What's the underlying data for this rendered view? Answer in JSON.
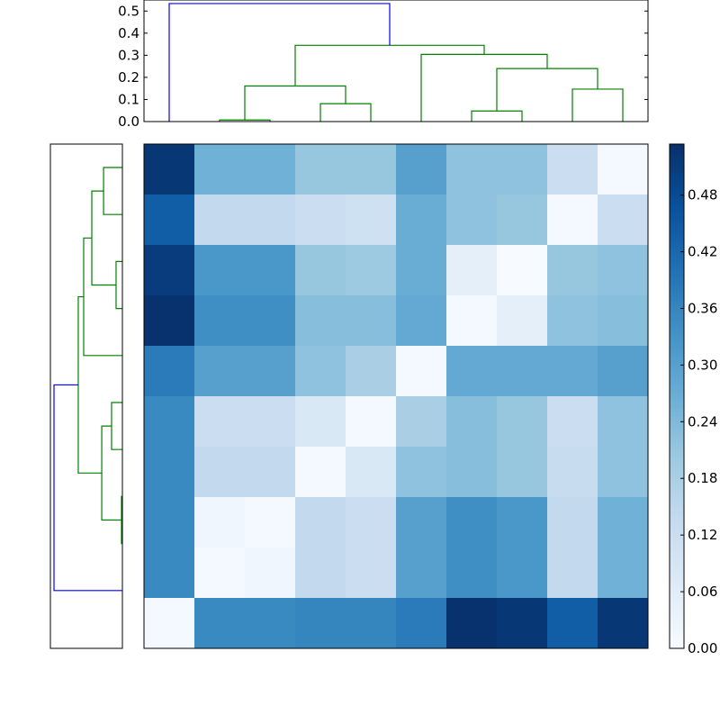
{
  "chart_data": {
    "type": "heatmap",
    "title": "",
    "colormap": "Blues",
    "colormap_stops": [
      "#f7fbff",
      "#deebf7",
      "#c6dbef",
      "#9ecae1",
      "#6baed6",
      "#4292c6",
      "#2171b5",
      "#08519c",
      "#08306b"
    ],
    "vlim": [
      0,
      0.534
    ],
    "matrix": [
      [
        0.52,
        0.26,
        0.26,
        0.21,
        0.21,
        0.3,
        0.22,
        0.22,
        0.12,
        0.01
      ],
      [
        0.44,
        0.14,
        0.14,
        0.12,
        0.11,
        0.27,
        0.22,
        0.21,
        0.01,
        0.12
      ],
      [
        0.51,
        0.32,
        0.32,
        0.21,
        0.2,
        0.27,
        0.05,
        0.0,
        0.21,
        0.22
      ],
      [
        0.53,
        0.34,
        0.34,
        0.23,
        0.23,
        0.28,
        0.01,
        0.05,
        0.22,
        0.23
      ],
      [
        0.38,
        0.3,
        0.3,
        0.22,
        0.18,
        0.01,
        0.28,
        0.28,
        0.28,
        0.3
      ],
      [
        0.35,
        0.12,
        0.12,
        0.08,
        0.01,
        0.18,
        0.23,
        0.21,
        0.12,
        0.22
      ],
      [
        0.35,
        0.14,
        0.14,
        0.01,
        0.08,
        0.22,
        0.23,
        0.21,
        0.13,
        0.22
      ],
      [
        0.35,
        0.02,
        0.01,
        0.14,
        0.12,
        0.3,
        0.34,
        0.32,
        0.14,
        0.26
      ],
      [
        0.35,
        0.01,
        0.02,
        0.14,
        0.12,
        0.3,
        0.34,
        0.32,
        0.14,
        0.26
      ],
      [
        0.01,
        0.35,
        0.35,
        0.36,
        0.36,
        0.38,
        0.53,
        0.52,
        0.44,
        0.52
      ]
    ],
    "colorbar": {
      "ticks": [
        0.0,
        0.06,
        0.12,
        0.18,
        0.24,
        0.3,
        0.36,
        0.42,
        0.48
      ],
      "tick_labels": [
        "0.00",
        "0.06",
        "0.12",
        "0.18",
        "0.24",
        "0.30",
        "0.36",
        "0.42",
        "0.48"
      ]
    },
    "top_dendrogram": {
      "ylim": [
        0,
        0.55
      ],
      "ticks": [
        0.0,
        0.1,
        0.2,
        0.3,
        0.4,
        0.5
      ],
      "tick_labels": [
        "0.0",
        "0.1",
        "0.2",
        "0.3",
        "0.4",
        "0.5"
      ],
      "links": [
        {
          "x": [
            1,
            1,
            2,
            2
          ],
          "h": [
            0,
            0.007,
            0.007,
            0
          ],
          "color": "#008000"
        },
        {
          "x": [
            3,
            3,
            4,
            4
          ],
          "h": [
            0,
            0.081,
            0.081,
            0
          ],
          "color": "#008000"
        },
        {
          "x": [
            1.5,
            1.5,
            3.5,
            3.5
          ],
          "h": [
            0.007,
            0.161,
            0.161,
            0.081
          ],
          "color": "#008000"
        },
        {
          "x": [
            6,
            6,
            7,
            7
          ],
          "h": [
            0,
            0.048,
            0.048,
            0
          ],
          "color": "#008000"
        },
        {
          "x": [
            8,
            8,
            9,
            9
          ],
          "h": [
            0,
            0.147,
            0.147,
            0
          ],
          "color": "#008000"
        },
        {
          "x": [
            6.5,
            6.5,
            8.5,
            8.5
          ],
          "h": [
            0.048,
            0.24,
            0.24,
            0.147
          ],
          "color": "#008000"
        },
        {
          "x": [
            5,
            5,
            7.5,
            7.5
          ],
          "h": [
            0,
            0.304,
            0.304,
            0.24
          ],
          "color": "#008000"
        },
        {
          "x": [
            2.5,
            2.5,
            6.25,
            6.25
          ],
          "h": [
            0.161,
            0.345,
            0.345,
            0.304
          ],
          "color": "#008000"
        },
        {
          "x": [
            0,
            0,
            4.375,
            4.375
          ],
          "h": [
            0,
            0.534,
            0.534,
            0.345
          ],
          "color": "#0000ff"
        }
      ]
    },
    "left_dendrogram": {
      "links": [
        {
          "x": [
            0,
            0,
            1,
            1
          ],
          "h": [
            0,
            0.146,
            0.146,
            0
          ],
          "color": "#008000"
        },
        {
          "x": [
            2,
            2,
            3,
            3
          ],
          "h": [
            0,
            0.049,
            0.049,
            0
          ],
          "color": "#008000"
        },
        {
          "x": [
            0.5,
            0.5,
            2.5,
            2.5
          ],
          "h": [
            0.146,
            0.237,
            0.237,
            0.049
          ],
          "color": "#008000"
        },
        {
          "x": [
            1.5,
            1.5,
            4,
            4
          ],
          "h": [
            0.237,
            0.3,
            0.3,
            0
          ],
          "color": "#008000"
        },
        {
          "x": [
            5,
            5,
            6,
            6
          ],
          "h": [
            0,
            0.084,
            0.084,
            0
          ],
          "color": "#008000"
        },
        {
          "x": [
            7,
            7,
            8,
            8
          ],
          "h": [
            0,
            0.007,
            0.007,
            0
          ],
          "color": "#008000"
        },
        {
          "x": [
            5.5,
            5.5,
            7.5,
            7.5
          ],
          "h": [
            0.084,
            0.16,
            0.16,
            0.007
          ],
          "color": "#008000"
        },
        {
          "x": [
            2.75,
            2.75,
            6.5,
            6.5
          ],
          "h": [
            0.3,
            0.342,
            0.342,
            0.16
          ],
          "color": "#008000"
        },
        {
          "x": [
            4.625,
            4.625,
            9,
            9
          ],
          "h": [
            0.342,
            0.53,
            0.53,
            0
          ],
          "color": "#0000ff"
        }
      ]
    }
  }
}
